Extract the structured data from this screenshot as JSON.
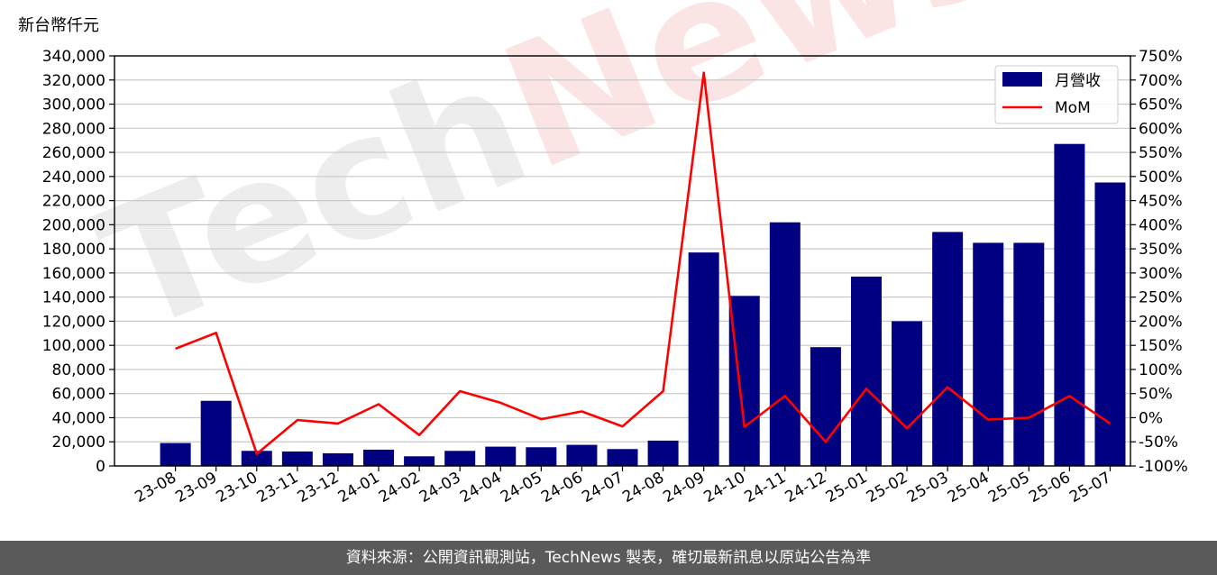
{
  "chart_data": {
    "type": "bar",
    "unit_label": "新台幣仟元",
    "categories": [
      "23-08",
      "23-09",
      "23-10",
      "23-11",
      "23-12",
      "24-01",
      "24-02",
      "24-03",
      "24-04",
      "24-05",
      "24-06",
      "24-07",
      "24-08",
      "24-09",
      "24-10",
      "24-11",
      "24-12",
      "25-01",
      "25-02",
      "25-03",
      "25-04",
      "25-05",
      "25-06",
      "25-07"
    ],
    "series": [
      {
        "name": "月營收",
        "type": "bar",
        "axis": "left",
        "color": "#000080",
        "values": [
          19000,
          54000,
          12500,
          12000,
          10500,
          13500,
          8000,
          12500,
          16000,
          15500,
          17500,
          14000,
          21000,
          177000,
          141000,
          202000,
          98500,
          157000,
          120000,
          194000,
          185000,
          185000,
          267000,
          235000
        ]
      },
      {
        "name": "MoM",
        "type": "line",
        "axis": "right",
        "color": "#ff0000",
        "values": [
          143,
          176,
          -75,
          -5,
          -12,
          28,
          -36,
          55,
          31,
          -3,
          13,
          -18,
          55,
          715,
          -19,
          45,
          -50,
          60,
          -22,
          63,
          -4,
          0,
          45,
          -12
        ]
      }
    ],
    "y_left": {
      "min": 0,
      "max": 340000,
      "step": 20000
    },
    "y_right": {
      "min": -100,
      "max": 750,
      "step": 50
    },
    "y_left_ticks": [
      "0",
      "20,000",
      "40,000",
      "60,000",
      "80,000",
      "100,000",
      "120,000",
      "140,000",
      "160,000",
      "180,000",
      "200,000",
      "220,000",
      "240,000",
      "260,000",
      "280,000",
      "300,000",
      "320,000",
      "340,000"
    ],
    "y_right_ticks": [
      "-100%",
      "-50%",
      "0%",
      "50%",
      "100%",
      "150%",
      "200%",
      "250%",
      "300%",
      "350%",
      "400%",
      "450%",
      "500%",
      "550%",
      "600%",
      "650%",
      "700%",
      "750%"
    ],
    "grid": true,
    "legend_position": "top-right",
    "watermark": "TechNews"
  },
  "footer": {
    "text": "資料來源：公開資訊觀測站，TechNews 製表，確切最新訊息以原站公告為準"
  }
}
